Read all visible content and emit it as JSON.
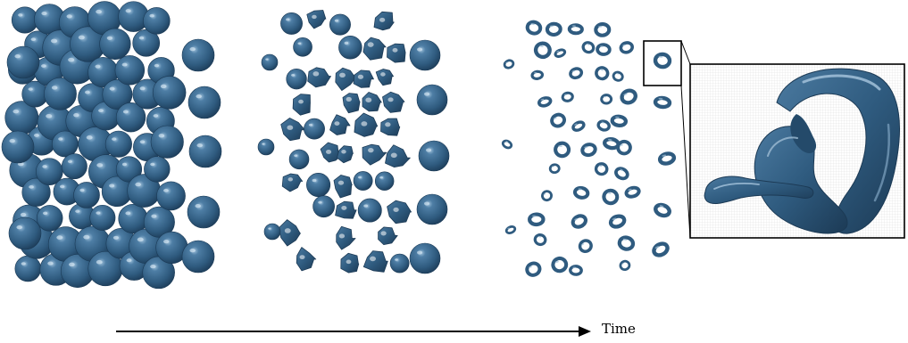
{
  "figure": {
    "axis_label": "Time",
    "colors": {
      "drop_base": "#2f5b7f",
      "drop_dark": "#1c3a55",
      "drop_light": "#8fb3cf",
      "mesh": "#c8c8c8",
      "frame": "#000000"
    },
    "panels": [
      {
        "stage": "initial",
        "shape": "spheres"
      },
      {
        "stage": "intermediate",
        "shape": "deforming-drops"
      },
      {
        "stage": "late",
        "shape": "toroidal-rings"
      },
      {
        "stage": "zoom",
        "shape": "single-ring-on-mesh"
      }
    ]
  }
}
